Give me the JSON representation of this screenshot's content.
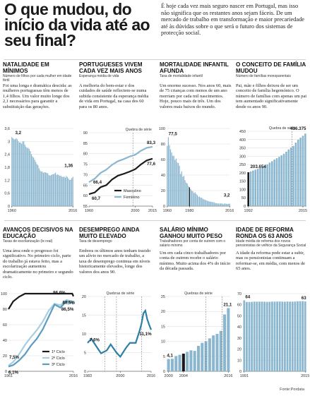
{
  "header": {
    "title": "O que mudou, do início da vida até ao seu final?",
    "intro": "É hoje cada vez mais seguro nascer em Portugal, mas isso não significa que os restantes anos sejam fáceis. De um mercado de trabalho em transformação e maior precariedade até às dúvidas sobre o que será o futuro dos sistemas de protecção social."
  },
  "panels": [
    {
      "title": "NATALIDADE EM MÍNIMOS",
      "subtitle": "Número de filhos por cada mulher em idade fértil",
      "body": "Foi uma longa e dramática descida: as mulheres portuguesas têm menos de 1,4 filhos. Um valor muito longe dos 2,1 necessários para garantir a substituição das gerações."
    },
    {
      "title": "PORTUGUESES VIVEM CADA VEZ MAIS ANOS",
      "subtitle": "Esperança média de vida",
      "body": "A melhoria do bem-estar e dos cuidados de saúde reflectem-se numa subida consistente da esperança média de vida em Portugal, na casa dos 60 para os 80 anos."
    },
    {
      "title": "MORTALIDADE INFANTIL AFUNDA",
      "subtitle": "Taxa de mortalidade infantil",
      "body": "Um enorme sucesso. Nos anos 60, mais de 75 crianças com menos de um ano morriam por cada mil nascimentos. Hoje, pouco mais de três. Um dos valores mais baixos do mundo."
    },
    {
      "title": "O CONCEITO DE FAMÍLIA MUDOU",
      "subtitle": "Número de famílias monoparentais",
      "body": "Pai, mãe e filhos deixou de ser um conceito de família hegemónico. O número de famílias com apenas um pai tem aumentado significativamente desde os anos 90."
    },
    {
      "title": "AVANÇOS DECISIVOS NA EDUCAÇÃO",
      "subtitle": "Taxas de escolarização (tx real)",
      "body": "Uma área onde o progresso foi significativo. No primeiro ciclo, parte do trabalho já estava feito, mas a escolarização aumentou dramaticamente no primeiro e segundo ciclo."
    },
    {
      "title": "DESEMPREGO AINDA MUITO ELEVADO",
      "subtitle": "Taxa de desemprego",
      "body": "Embora os últimos anos tenham trazido um alívio no mercado de trabalho, a taxa de desemprego continua em níveis historicamente elevados, longe dos valores dos anos 90."
    },
    {
      "title": "SALÁRIO MÍNIMO GANHOU MUITO PESO",
      "subtitle": "Trabalhadores por conta de outrem com o salário mínimo",
      "body": "Um em cada cinco trabalhadores por conta de outrem recebe o salário mínimo. Muito acima dos 4% do início da década passada."
    },
    {
      "title": "IDADE DE REFORMA RONDA OS 63 ANOS",
      "subtitle": "Idade média de reforma dos novos pensionistas de velhice da Segurança Social",
      "body": "A idade da reforma pode estar a subir, mas os pensionistas continuam a reformar-se, em média, com menos de 65 anos."
    }
  ],
  "source": "Fonte:Pordata",
  "colors": {
    "bar": "#8ab6cf",
    "dark": "#1a1a1a",
    "highlight": "#2e7fa6"
  },
  "chart_data": [
    {
      "type": "bar",
      "x": [
        1960,
        1961,
        1962,
        1963,
        1964,
        1965,
        1966,
        1967,
        1968,
        1969,
        1970,
        1971,
        1972,
        1973,
        1974,
        1975,
        1976,
        1977,
        1978,
        1979,
        1980,
        1981,
        1982,
        1983,
        1984,
        1985,
        1986,
        1987,
        1988,
        1989,
        1990,
        1991,
        1992,
        1993,
        1994,
        1995,
        1996,
        1997,
        1998,
        1999,
        2000,
        2001,
        2002,
        2003,
        2004,
        2005,
        2006,
        2007,
        2008,
        2009,
        2010,
        2011,
        2012,
        2013,
        2014,
        2015,
        2016
      ],
      "values": [
        3.2,
        3.15,
        3.1,
        3.1,
        3.15,
        3.1,
        3.0,
        2.95,
        2.95,
        2.9,
        3.0,
        3.0,
        2.85,
        2.75,
        2.7,
        2.7,
        2.65,
        2.55,
        2.4,
        2.3,
        2.25,
        2.15,
        2.05,
        1.95,
        1.9,
        1.75,
        1.65,
        1.6,
        1.6,
        1.55,
        1.57,
        1.56,
        1.54,
        1.52,
        1.44,
        1.41,
        1.44,
        1.47,
        1.48,
        1.5,
        1.55,
        1.45,
        1.47,
        1.44,
        1.4,
        1.41,
        1.36,
        1.35,
        1.37,
        1.32,
        1.39,
        1.35,
        1.28,
        1.21,
        1.23,
        1.3,
        1.36
      ],
      "ylim": [
        0,
        3.6
      ],
      "yticks": [
        0,
        0.6,
        1.2,
        1.8,
        2.4,
        3,
        3.6
      ],
      "ytick_labels": [
        "0",
        "0,6",
        "1,2",
        "1,8",
        "2,4",
        "3",
        "3,6"
      ],
      "xtick_labels": [
        "1960",
        "2016"
      ],
      "annotations": [
        "3,2",
        "1,36"
      ]
    },
    {
      "type": "line",
      "x_years": [
        1960,
        1965,
        1970,
        1975,
        1980,
        1985,
        1990,
        1995,
        2000,
        2005,
        2010,
        2015
      ],
      "series": [
        {
          "name": "Masculino",
          "values": [
            60.7,
            61.5,
            64.0,
            65.0,
            67.7,
            69.5,
            70.4,
            71.4,
            72.6,
            74.9,
            76.8,
            77.6
          ]
        },
        {
          "name": "Feminino",
          "values": [
            66.4,
            68.1,
            70.8,
            72.4,
            74.7,
            76.4,
            77.4,
            78.6,
            79.5,
            81.4,
            82.8,
            83.3
          ]
        }
      ],
      "ylim": [
        55,
        90
      ],
      "yticks": [
        55,
        60,
        65,
        70,
        75,
        80,
        85,
        90
      ],
      "xtick_labels": [
        "1960",
        "2000",
        "2015"
      ],
      "annotations": [
        "83,3",
        "77,6",
        "66,4",
        "60,7"
      ],
      "break_label": "Quebra de série"
    },
    {
      "type": "bar",
      "x": [
        1960,
        1961,
        1962,
        1963,
        1964,
        1965,
        1966,
        1967,
        1968,
        1969,
        1970,
        1971,
        1972,
        1973,
        1974,
        1975,
        1976,
        1977,
        1978,
        1979,
        1980,
        1981,
        1982,
        1983,
        1984,
        1985,
        1986,
        1987,
        1988,
        1989,
        1990,
        1991,
        1992,
        1993,
        1994,
        1995,
        1996,
        1997,
        1998,
        1999,
        2000,
        2001,
        2002,
        2003,
        2004,
        2005,
        2006,
        2007,
        2008,
        2009,
        2010,
        2011,
        2012,
        2013,
        2014,
        2015,
        2016
      ],
      "values": [
        77.5,
        88.8,
        78.6,
        73.1,
        69.0,
        64.9,
        64.7,
        59.2,
        61.1,
        56.2,
        55.5,
        51.9,
        41.4,
        44.8,
        37.9,
        38.9,
        33.4,
        30.3,
        29.1,
        26.0,
        24.2,
        21.8,
        19.8,
        19.2,
        16.7,
        17.8,
        15.9,
        14.2,
        12.1,
        12.2,
        10.9,
        10.8,
        9.3,
        8.7,
        8.1,
        7.5,
        6.9,
        6.4,
        6.0,
        5.6,
        5.5,
        5.0,
        5.0,
        4.1,
        3.8,
        3.5,
        3.3,
        3.4,
        3.3,
        3.6,
        2.5,
        3.1,
        3.4,
        2.9,
        2.9,
        2.9,
        3.2
      ],
      "ylim": [
        0,
        100
      ],
      "yticks": [
        0,
        20,
        40,
        60,
        80,
        100
      ],
      "highlight_index": 20,
      "xtick_labels": [
        "1960",
        "1980",
        "2016"
      ],
      "annotations": [
        "77,5",
        "3,2"
      ]
    },
    {
      "type": "bar",
      "x": [
        1992,
        1993,
        1994,
        1995,
        1996,
        1997,
        1998,
        1999,
        2000,
        2001,
        2002,
        2003,
        2004,
        2005,
        2006,
        2007,
        2008,
        2009,
        2010,
        2011,
        2012,
        2013,
        2014,
        2015,
        2016
      ],
      "values": [
        203.654,
        208,
        214,
        219,
        224,
        229,
        236,
        243,
        251,
        262,
        270,
        280,
        288,
        296,
        305,
        315,
        327,
        341,
        352,
        362,
        382,
        400,
        412,
        423,
        436.375
      ],
      "ylim": [
        0,
        450
      ],
      "yticks": [
        0,
        50,
        100,
        150,
        200,
        250,
        300,
        350,
        400,
        450
      ],
      "ytick_labels": [
        "0",
        "50",
        "100",
        "150",
        "200",
        "250",
        "300",
        "350",
        "400",
        "450"
      ],
      "highlight_index": 0,
      "xtick_labels": [
        "1992",
        "2015"
      ],
      "annotations": [
        "436.375",
        "203.654"
      ],
      "break_label": "Quebra de série"
    },
    {
      "type": "line",
      "x_years": [
        1961,
        1965,
        1970,
        1975,
        1980,
        1985,
        1990,
        1995,
        2000,
        2005,
        2010,
        2015,
        2016
      ],
      "series": [
        {
          "name": "1º Ciclo",
          "values": [
            80,
            90,
            96,
            100,
            100,
            100,
            100,
            100,
            100,
            100,
            100,
            100,
            96.6
          ]
        },
        {
          "name": "2º Ciclo",
          "values": [
            7.5,
            12,
            22,
            34,
            44,
            53,
            64,
            78,
            87,
            85,
            92,
            90,
            88.5
          ]
        },
        {
          "name": "3º Ciclo",
          "values": [
            6.1,
            8,
            14,
            22,
            33,
            42,
            54,
            70,
            86,
            82,
            90,
            88,
            86.5
          ]
        }
      ],
      "ylim": [
        0,
        100
      ],
      "yticks": [
        0,
        20,
        40,
        60,
        80,
        100
      ],
      "xtick_labels": [
        "1961",
        "2016"
      ],
      "annotations": [
        "96,6%",
        "88,5%",
        "86,5%",
        "7,5%",
        "6,1%"
      ]
    },
    {
      "type": "line",
      "x_years": [
        1983,
        1985,
        1987,
        1990,
        1993,
        1995,
        1998,
        2000,
        2003,
        2005,
        2008,
        2010,
        2011,
        2012,
        2013,
        2014,
        2015,
        2016
      ],
      "values": [
        7.6,
        8.7,
        7.1,
        4.8,
        5.6,
        7.2,
        5.0,
        3.9,
        6.3,
        7.6,
        7.6,
        10.8,
        12.7,
        15.5,
        16.2,
        13.9,
        12.4,
        11.1
      ],
      "ylim": [
        0,
        20
      ],
      "yticks": [
        0,
        5,
        10,
        15,
        20
      ],
      "xtick_labels": [
        "1983",
        "2000",
        "2016"
      ],
      "annotations": [
        "7,6%",
        "11,1%"
      ],
      "break_label": "Quebras de série"
    },
    {
      "type": "bar",
      "x": [
        2000,
        2001,
        2002,
        2003,
        2004,
        2005,
        2006,
        2007,
        2008,
        2009,
        2010,
        2011,
        2012,
        2013,
        2014,
        2015,
        2016
      ],
      "values": [
        4.1,
        4.2,
        5.1,
        5.5,
        5.9,
        6.5,
        7.0,
        6.8,
        8.5,
        9.5,
        10.0,
        11.0,
        12.0,
        12.5,
        13.5,
        19.0,
        21.1
      ],
      "ylim": [
        0,
        25
      ],
      "yticks": [
        0,
        5,
        10,
        15,
        20,
        25
      ],
      "highlight_index": 4,
      "xtick_labels": [
        "2000",
        "2004",
        "2016"
      ],
      "annotations": [
        "4,1",
        "21,1"
      ],
      "break_label": "Quebras de série"
    },
    {
      "type": "bar",
      "x": [
        1991,
        1992,
        1993,
        1994,
        1995,
        1996,
        1997,
        1998,
        1999,
        2000,
        2001,
        2002,
        2003,
        2004,
        2005,
        2006,
        2007,
        2008,
        2009,
        2010,
        2011,
        2012,
        2013,
        2014,
        2015
      ],
      "values": [
        64,
        62.5,
        62.5,
        62.6,
        62.8,
        62.8,
        62.8,
        62.8,
        62.7,
        62.6,
        62.7,
        62.8,
        62.8,
        62.9,
        62.9,
        62.8,
        62.7,
        62.9,
        62.8,
        62.8,
        62.9,
        63.1,
        63.2,
        63.3,
        63.0
      ],
      "ylim": [
        0,
        70
      ],
      "yticks": [
        0,
        10,
        20,
        30,
        40,
        50,
        60,
        70
      ],
      "xtick_labels": [
        "1991",
        "2015"
      ],
      "annotations": [
        "64",
        "63"
      ]
    }
  ],
  "legend_labels": [
    "Masculino",
    "Feminino",
    "1º Ciclo",
    "2º Ciclo",
    "3º Ciclo"
  ]
}
